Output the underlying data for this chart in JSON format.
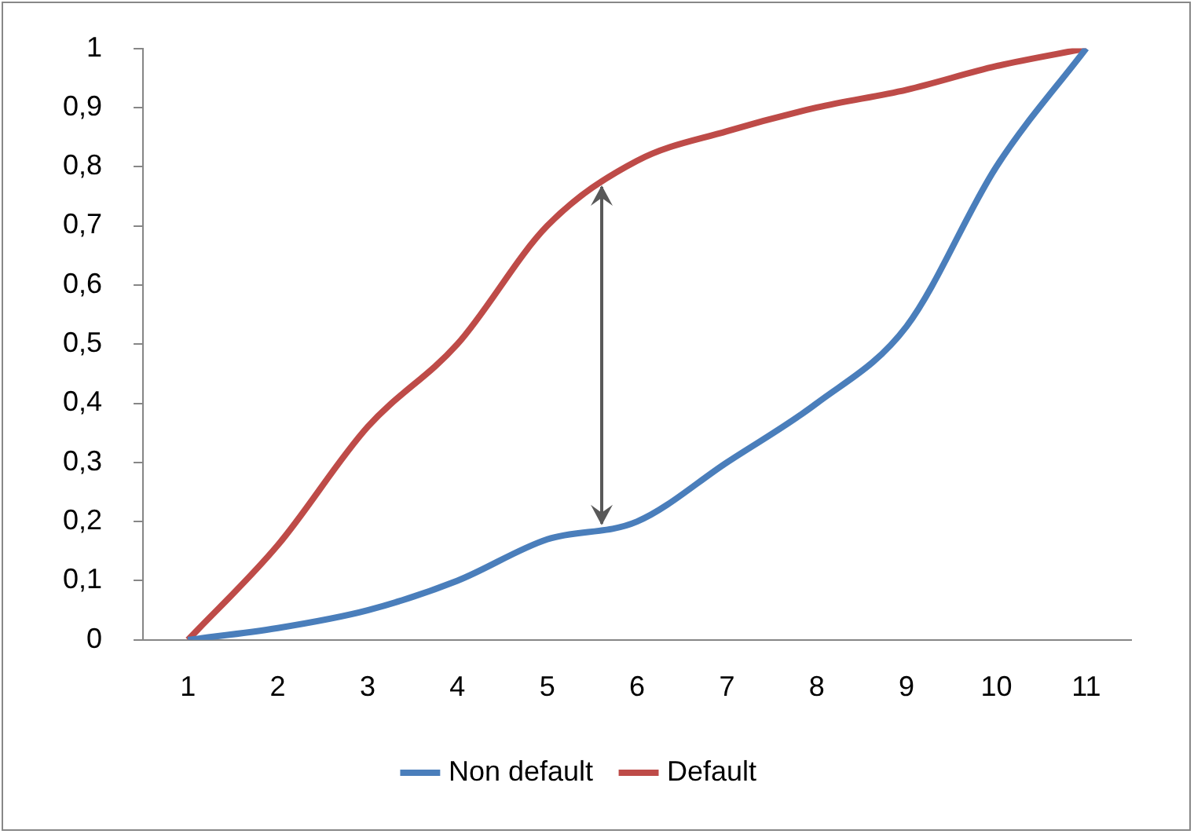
{
  "chart_data": {
    "type": "line",
    "categories": [
      "1",
      "2",
      "3",
      "4",
      "5",
      "6",
      "7",
      "8",
      "9",
      "10",
      "11"
    ],
    "series": [
      {
        "name": "Non default",
        "color": "#4a7ebb",
        "values": [
          0,
          0.02,
          0.05,
          0.1,
          0.17,
          0.2,
          0.3,
          0.4,
          0.53,
          0.8,
          1
        ]
      },
      {
        "name": "Default",
        "color": "#be4b48",
        "values": [
          0,
          0.16,
          0.36,
          0.5,
          0.7,
          0.81,
          0.86,
          0.9,
          0.93,
          0.97,
          1
        ]
      }
    ],
    "ylim": [
      0,
      1
    ],
    "yticks": [
      {
        "value": 0,
        "label": "0"
      },
      {
        "value": 0.1,
        "label": "0,1"
      },
      {
        "value": 0.2,
        "label": "0,2"
      },
      {
        "value": 0.3,
        "label": "0,3"
      },
      {
        "value": 0.4,
        "label": "0,4"
      },
      {
        "value": 0.5,
        "label": "0,5"
      },
      {
        "value": 0.6,
        "label": "0,6"
      },
      {
        "value": 0.7,
        "label": "0,7"
      },
      {
        "value": 0.8,
        "label": "0,8"
      },
      {
        "value": 0.9,
        "label": "0,9"
      },
      {
        "value": 1,
        "label": "1"
      }
    ],
    "grid": false,
    "legend": "bottom",
    "marker": "none",
    "line_style": "solid"
  }
}
